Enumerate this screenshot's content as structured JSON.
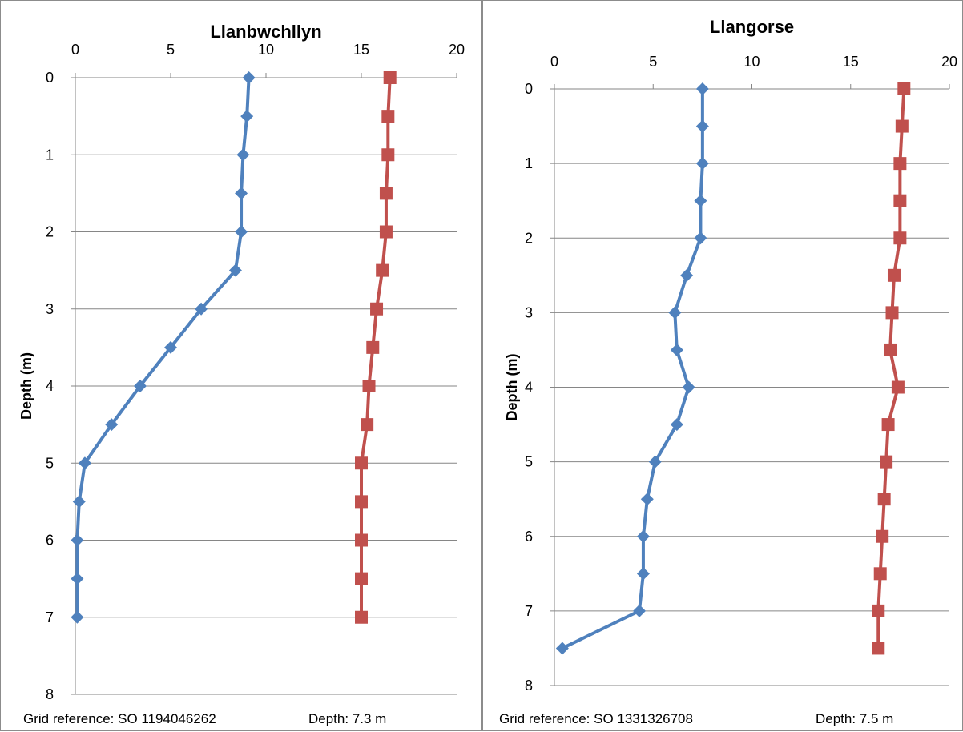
{
  "chart_data": [
    {
      "type": "line",
      "title": "Llanbwchllyn",
      "ylabel": "Depth (m)",
      "xlim": [
        0,
        20
      ],
      "ylim": [
        0,
        8
      ],
      "y_inverted": true,
      "x_axis_position": "top",
      "x_ticks": [
        "0",
        "5",
        "10",
        "15",
        "20"
      ],
      "y_ticks": [
        "0",
        "1",
        "2",
        "3",
        "4",
        "5",
        "6",
        "7",
        "8"
      ],
      "grid": "horizontal",
      "footer_left": "Grid reference: SO 1194046262",
      "footer_right": "Depth: 7.3 m",
      "series": [
        {
          "color": "#4f81bd",
          "marker": "diamond",
          "points": [
            {
              "x": 9.1,
              "y": 0
            },
            {
              "x": 9.0,
              "y": 0.5
            },
            {
              "x": 8.8,
              "y": 1
            },
            {
              "x": 8.7,
              "y": 1.5
            },
            {
              "x": 8.7,
              "y": 2
            },
            {
              "x": 8.4,
              "y": 2.5
            },
            {
              "x": 6.6,
              "y": 3
            },
            {
              "x": 5.0,
              "y": 3.5
            },
            {
              "x": 3.4,
              "y": 4
            },
            {
              "x": 1.9,
              "y": 4.5
            },
            {
              "x": 0.5,
              "y": 5
            },
            {
              "x": 0.2,
              "y": 5.5
            },
            {
              "x": 0.1,
              "y": 6
            },
            {
              "x": 0.1,
              "y": 6.5
            },
            {
              "x": 0.1,
              "y": 7
            }
          ]
        },
        {
          "color": "#c0504d",
          "marker": "square",
          "points": [
            {
              "x": 16.5,
              "y": 0
            },
            {
              "x": 16.4,
              "y": 0.5
            },
            {
              "x": 16.4,
              "y": 1
            },
            {
              "x": 16.3,
              "y": 1.5
            },
            {
              "x": 16.3,
              "y": 2
            },
            {
              "x": 16.1,
              "y": 2.5
            },
            {
              "x": 15.8,
              "y": 3
            },
            {
              "x": 15.6,
              "y": 3.5
            },
            {
              "x": 15.4,
              "y": 4
            },
            {
              "x": 15.3,
              "y": 4.5
            },
            {
              "x": 15.0,
              "y": 5
            },
            {
              "x": 15.0,
              "y": 5.5
            },
            {
              "x": 15.0,
              "y": 6
            },
            {
              "x": 15.0,
              "y": 6.5
            },
            {
              "x": 15.0,
              "y": 7
            }
          ]
        }
      ]
    },
    {
      "type": "line",
      "title": "Llangorse",
      "ylabel": "Depth (m)",
      "xlim": [
        0,
        20
      ],
      "ylim": [
        0,
        8
      ],
      "y_inverted": true,
      "x_axis_position": "top",
      "x_ticks": [
        "0",
        "5",
        "10",
        "15",
        "20"
      ],
      "y_ticks": [
        "0",
        "1",
        "2",
        "3",
        "4",
        "5",
        "6",
        "7",
        "8"
      ],
      "grid": "horizontal",
      "footer_left": "Grid reference: SO 1331326708",
      "footer_right": "Depth: 7.5 m",
      "series": [
        {
          "color": "#4f81bd",
          "marker": "diamond",
          "points": [
            {
              "x": 7.5,
              "y": 0
            },
            {
              "x": 7.5,
              "y": 0.5
            },
            {
              "x": 7.5,
              "y": 1
            },
            {
              "x": 7.4,
              "y": 1.5
            },
            {
              "x": 7.4,
              "y": 2
            },
            {
              "x": 6.7,
              "y": 2.5
            },
            {
              "x": 6.1,
              "y": 3
            },
            {
              "x": 6.2,
              "y": 3.5
            },
            {
              "x": 6.8,
              "y": 4
            },
            {
              "x": 6.2,
              "y": 4.5
            },
            {
              "x": 5.1,
              "y": 5
            },
            {
              "x": 4.7,
              "y": 5.5
            },
            {
              "x": 4.5,
              "y": 6
            },
            {
              "x": 4.5,
              "y": 6.5
            },
            {
              "x": 4.3,
              "y": 7
            },
            {
              "x": 0.4,
              "y": 7.5
            }
          ]
        },
        {
          "color": "#c0504d",
          "marker": "square",
          "points": [
            {
              "x": 17.7,
              "y": 0
            },
            {
              "x": 17.6,
              "y": 0.5
            },
            {
              "x": 17.5,
              "y": 1
            },
            {
              "x": 17.5,
              "y": 1.5
            },
            {
              "x": 17.5,
              "y": 2
            },
            {
              "x": 17.2,
              "y": 2.5
            },
            {
              "x": 17.1,
              "y": 3
            },
            {
              "x": 17.0,
              "y": 3.5
            },
            {
              "x": 17.4,
              "y": 4
            },
            {
              "x": 16.9,
              "y": 4.5
            },
            {
              "x": 16.8,
              "y": 5
            },
            {
              "x": 16.7,
              "y": 5.5
            },
            {
              "x": 16.6,
              "y": 6
            },
            {
              "x": 16.5,
              "y": 6.5
            },
            {
              "x": 16.4,
              "y": 7
            },
            {
              "x": 16.4,
              "y": 7.5
            }
          ]
        }
      ]
    }
  ]
}
